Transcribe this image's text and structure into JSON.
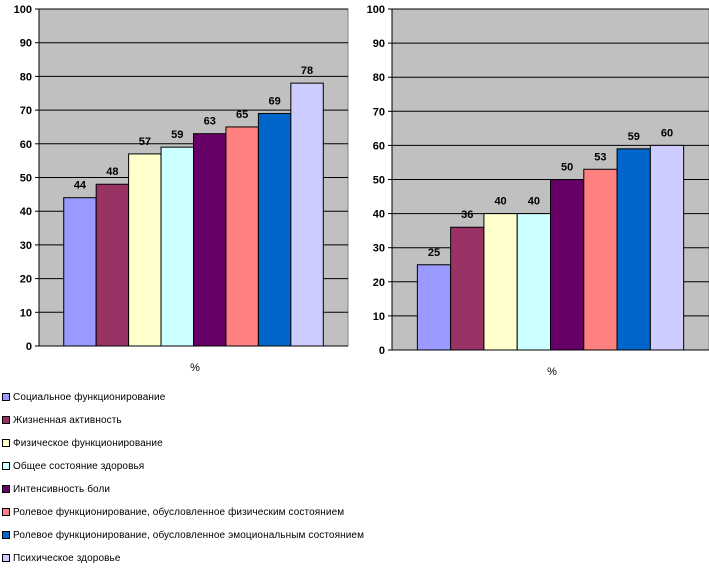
{
  "colors": {
    "plot_bg": "#c0c0c0",
    "grid": "#000000",
    "series": [
      "#9999ff",
      "#993366",
      "#ffffcc",
      "#ccffff",
      "#660066",
      "#ff8080",
      "#0066cc",
      "#ccccff"
    ]
  },
  "legend": [
    "Социальное функционирование",
    "Жизненная активность",
    "Физическое функционирование",
    "Общее состояние здоровья",
    "Интенсивность боли",
    "Ролевое функционирование, обусловленное физическим состоянием",
    "Ролевое функционирование, обусловленное эмоциональным состоянием",
    "Психическое здоровье"
  ],
  "chart_data": [
    {
      "type": "bar",
      "title": "",
      "xlabel": "%",
      "ylabel": "",
      "ylim": [
        0,
        100
      ],
      "yticks": [
        "0",
        "10",
        "20",
        "30",
        "40",
        "50",
        "60",
        "70",
        "80",
        "90",
        "100"
      ],
      "grid": true,
      "categories": [
        "Социальное функционирование",
        "Жизненная активность",
        "Физическое функционирование",
        "Общее состояние здоровья",
        "Интенсивность боли",
        "Ролевое функционирование, обусловленное физическим состоянием",
        "Ролевое функционирование, обусловленное эмоциональным состоянием",
        "Психическое здоровье"
      ],
      "values": [
        44,
        48,
        57,
        59,
        63,
        65,
        69,
        78
      ]
    },
    {
      "type": "bar",
      "title": "",
      "xlabel": "%",
      "ylabel": "",
      "ylim": [
        0,
        100
      ],
      "yticks": [
        "0",
        "10",
        "20",
        "30",
        "40",
        "50",
        "60",
        "70",
        "80",
        "90",
        "100"
      ],
      "grid": true,
      "categories": [
        "Социальное функционирование",
        "Жизненная активность",
        "Физическое функционирование",
        "Общее состояние здоровья",
        "Интенсивность боли",
        "Ролевое функционирование, обусловленное физическим состоянием",
        "Ролевое функционирование, обусловленное эмоциональным состоянием",
        "Психическое здоровье"
      ],
      "values": [
        25,
        36,
        40,
        40,
        50,
        53,
        59,
        60
      ]
    }
  ]
}
